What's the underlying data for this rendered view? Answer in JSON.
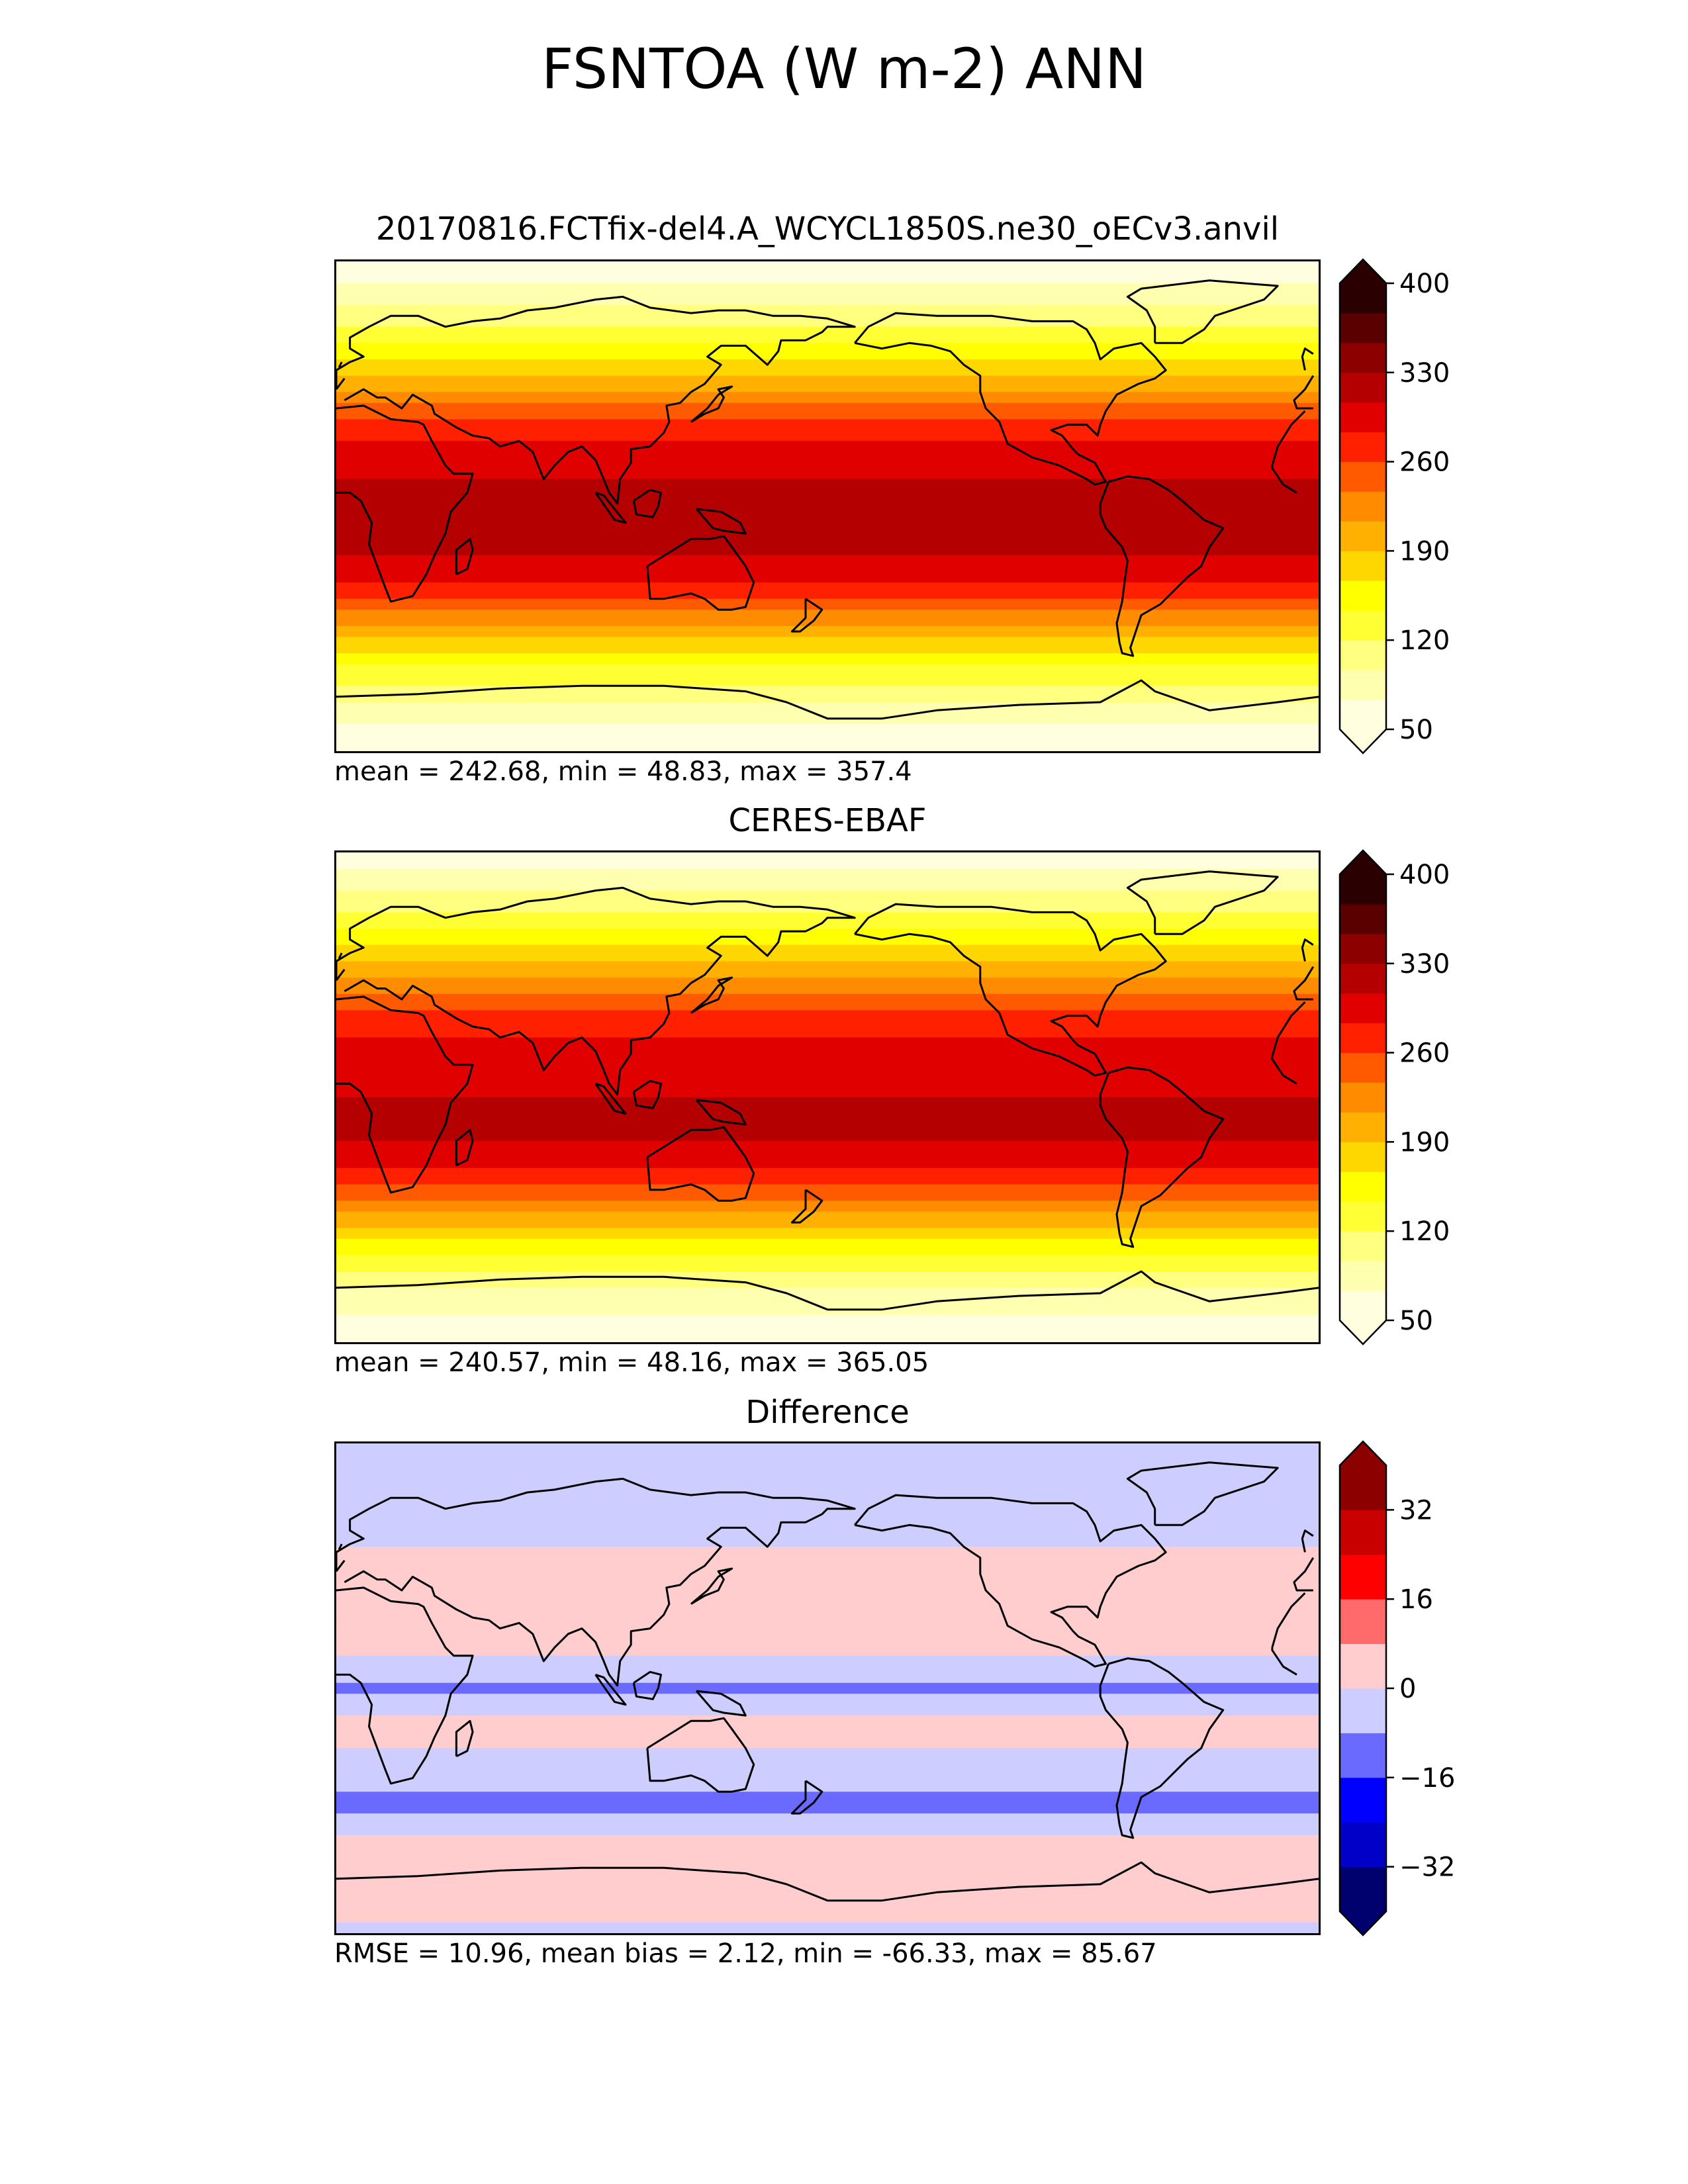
{
  "figure": {
    "title": "FSNTOA (W m-2) ANN"
  },
  "panels": [
    {
      "title": "20170816.FCTfix-del4.A_WCYCL1850S.ne30_oECv3.anvil",
      "stats": "mean = 242.68, min = 48.83, max = 357.4"
    },
    {
      "title": "CERES-EBAF",
      "stats": "mean = 240.57, min = 48.16, max = 365.05"
    },
    {
      "title": "Difference",
      "stats": "RMSE = 10.96, mean bias = 2.12, min = -66.33, max = 85.67"
    }
  ],
  "chart_data": [
    {
      "type": "heatmap",
      "title": "20170816.FCTfix-del4.A_WCYCL1850S.ne30_oECv3.anvil",
      "projection": "plate-carree, centered 180",
      "colorbar": {
        "levels": [
          50,
          75,
          100,
          125,
          150,
          175,
          200,
          225,
          250,
          275,
          300,
          325,
          350,
          375,
          400
        ],
        "tick_values": [
          50,
          120,
          190,
          260,
          330,
          400
        ],
        "tick_labels": [
          "50",
          "120",
          "190",
          "260",
          "330",
          "400"
        ],
        "extend": "both",
        "colors": [
          "#ffffe0",
          "#ffffb0",
          "#ffff80",
          "#ffff33",
          "#ffff00",
          "#ffd700",
          "#ffb000",
          "#ff8c00",
          "#ff5a00",
          "#ff2000",
          "#e00000",
          "#b40000",
          "#8c0000",
          "#5a0000",
          "#2a0000"
        ]
      },
      "zonal_profile": [
        {
          "lat": 90,
          "value": 55
        },
        {
          "lat": 75,
          "value": 95
        },
        {
          "lat": 60,
          "value": 150
        },
        {
          "lat": 45,
          "value": 215
        },
        {
          "lat": 30,
          "value": 285
        },
        {
          "lat": 15,
          "value": 320
        },
        {
          "lat": 0,
          "value": 335
        },
        {
          "lat": -15,
          "value": 330
        },
        {
          "lat": -30,
          "value": 295
        },
        {
          "lat": -45,
          "value": 215
        },
        {
          "lat": -60,
          "value": 145
        },
        {
          "lat": -75,
          "value": 85
        },
        {
          "lat": -90,
          "value": 55
        }
      ],
      "stats": {
        "mean": 242.68,
        "min": 48.83,
        "max": 357.4
      }
    },
    {
      "type": "heatmap",
      "title": "CERES-EBAF",
      "projection": "plate-carree, centered 180",
      "colorbar": {
        "levels": [
          50,
          75,
          100,
          125,
          150,
          175,
          200,
          225,
          250,
          275,
          300,
          325,
          350,
          375,
          400
        ],
        "tick_values": [
          50,
          120,
          190,
          260,
          330,
          400
        ],
        "tick_labels": [
          "50",
          "120",
          "190",
          "260",
          "330",
          "400"
        ],
        "extend": "both",
        "colors": [
          "#ffffe0",
          "#ffffb0",
          "#ffff80",
          "#ffff33",
          "#ffff00",
          "#ffd700",
          "#ffb000",
          "#ff8c00",
          "#ff5a00",
          "#ff2000",
          "#e00000",
          "#b40000",
          "#8c0000",
          "#5a0000",
          "#2a0000"
        ]
      },
      "zonal_profile": [
        {
          "lat": 90,
          "value": 55
        },
        {
          "lat": 75,
          "value": 100
        },
        {
          "lat": 60,
          "value": 160
        },
        {
          "lat": 45,
          "value": 220
        },
        {
          "lat": 30,
          "value": 280
        },
        {
          "lat": 15,
          "value": 315
        },
        {
          "lat": 0,
          "value": 325
        },
        {
          "lat": -15,
          "value": 325
        },
        {
          "lat": -30,
          "value": 290
        },
        {
          "lat": -45,
          "value": 210
        },
        {
          "lat": -60,
          "value": 140
        },
        {
          "lat": -75,
          "value": 85
        },
        {
          "lat": -90,
          "value": 55
        }
      ],
      "stats": {
        "mean": 240.57,
        "min": 48.16,
        "max": 365.05
      }
    },
    {
      "type": "heatmap",
      "title": "Difference",
      "projection": "plate-carree, centered 180",
      "colorbar": {
        "levels": [
          -40,
          -32,
          -24,
          -16,
          -8,
          0,
          8,
          16,
          24,
          32,
          40
        ],
        "tick_values": [
          -32,
          -16,
          0,
          16,
          32
        ],
        "tick_labels": [
          "−32",
          "−16",
          "0",
          "16",
          "32"
        ],
        "extend": "both",
        "colors": [
          "#00006e",
          "#0000c8",
          "#0000ff",
          "#6a6aff",
          "#cdcdff",
          "#ffcdcd",
          "#ff6a6a",
          "#ff0000",
          "#c80000",
          "#8c0000"
        ]
      },
      "zonal_profile": [
        {
          "lat": 90,
          "value": -4
        },
        {
          "lat": 75,
          "value": -6
        },
        {
          "lat": 60,
          "value": -4
        },
        {
          "lat": 45,
          "value": 4
        },
        {
          "lat": 30,
          "value": 6
        },
        {
          "lat": 15,
          "value": 2
        },
        {
          "lat": 0,
          "value": -10
        },
        {
          "lat": -15,
          "value": 4
        },
        {
          "lat": -30,
          "value": -6
        },
        {
          "lat": -45,
          "value": -10
        },
        {
          "lat": -60,
          "value": 6
        },
        {
          "lat": -75,
          "value": 4
        },
        {
          "lat": -90,
          "value": -2
        }
      ],
      "stats": {
        "rmse": 10.96,
        "mean_bias": 2.12,
        "min": -66.33,
        "max": 85.67
      }
    }
  ]
}
